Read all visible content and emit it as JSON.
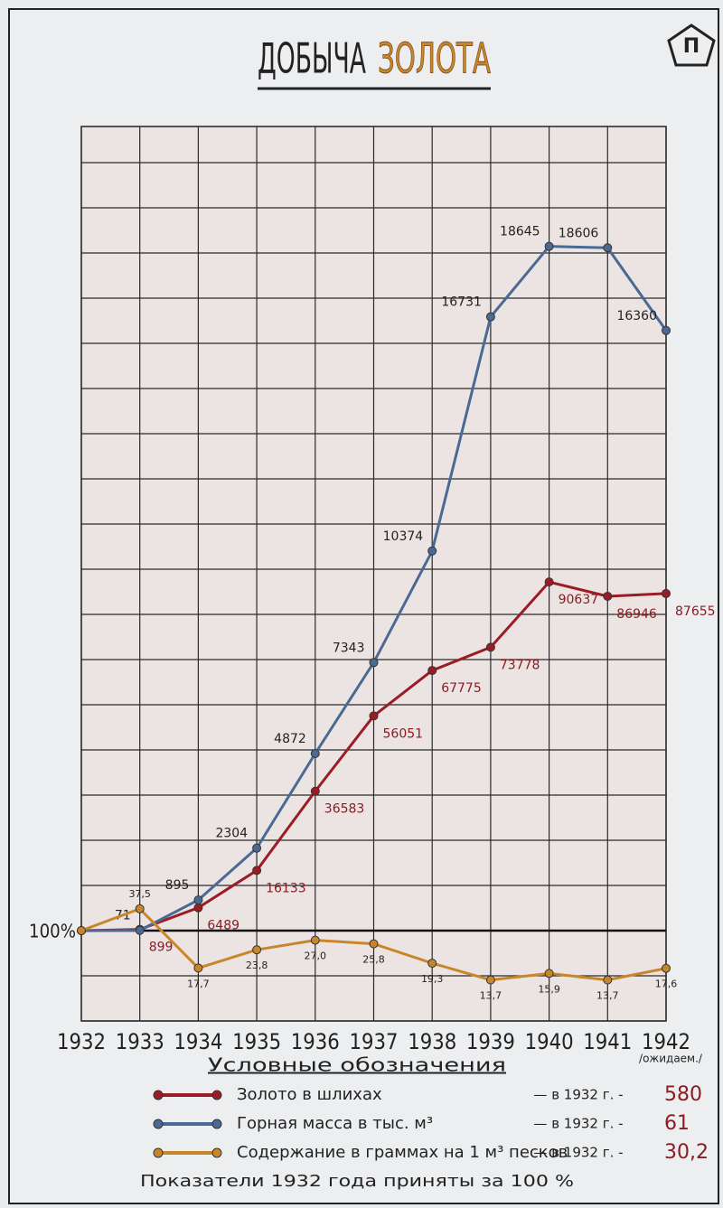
{
  "chart_data": {
    "type": "line",
    "title": [
      "ДОБЫЧА",
      "ЗОЛОТА"
    ],
    "categories": [
      "1932",
      "1933",
      "1934",
      "1935",
      "1936",
      "1937",
      "1938",
      "1939",
      "1940",
      "1941",
      "1942"
    ],
    "category_note": "/ожидаем./",
    "baseline_label": "100%",
    "legend_title": "Условные обозначения",
    "base_note": "— в 1932 г. -",
    "footnote": "Показатели 1932 года приняты за 100 %",
    "series": [
      {
        "name": "Золото в шлихах",
        "color": "#9b1c26",
        "values": [
          580,
          899,
          6489,
          16133,
          36583,
          56051,
          67775,
          73778,
          90637,
          86946,
          87655
        ],
        "ylim": [
          -22760,
          208300
        ]
      },
      {
        "name": "Горная масса в тыс. м³",
        "color": "#4a6a94",
        "values": [
          61,
          71,
          895,
          2304,
          4872,
          7343,
          10374,
          16731,
          18645,
          18606,
          16360
        ],
        "ylim": [
          -2390,
          21900
        ]
      },
      {
        "name": "Содержание в граммах на 1 м³ песков",
        "color": "#c8862a",
        "values": [
          30.2,
          37.5,
          17.7,
          23.8,
          27.0,
          25.8,
          19.3,
          13.7,
          15.9,
          13.7,
          17.6
        ],
        "value_labels": [
          "30,2",
          "37,5",
          "17,7",
          "23,8",
          "27,0",
          "25,8",
          "19,3",
          "13,7",
          "15,9",
          "13,7",
          "17,6"
        ],
        "ylim": [
          0,
          299
        ]
      }
    ]
  }
}
